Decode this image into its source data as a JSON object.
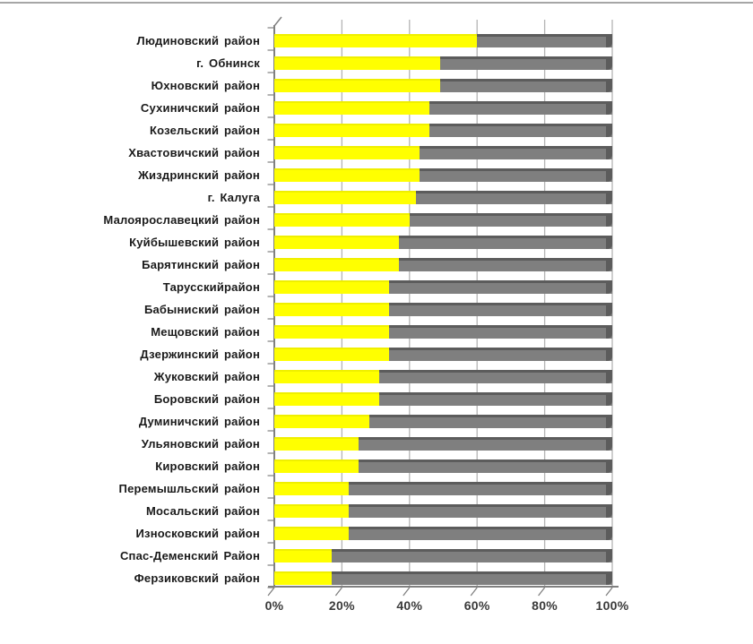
{
  "colors": {
    "series_yellow": "#FFFF00",
    "series_yellow_edge": "#DBDB00",
    "series_gray": "#7F7F7F",
    "series_gray_edge": "#5C5C5C",
    "gridline": "#B4B4B4",
    "axis": "#808080",
    "axis_label_text": "#3A3A3A",
    "category_label_text": "#1A1A1A",
    "frame_border": "#A6A6A6",
    "background": "#FFFFFF"
  },
  "chart_data": {
    "type": "bar",
    "orientation": "horizontal",
    "stacked": true,
    "unit": "%",
    "grid": true,
    "legend_position": "none",
    "xlim": [
      0,
      100
    ],
    "x_tick_labels": [
      "0%",
      "20%",
      "40%",
      "60%",
      "80%",
      "100%"
    ],
    "categories": [
      "Людиновский район",
      "г. Обнинск",
      "Юхновский район",
      "Сухиничский район",
      "Козельский район",
      "Хвастовичский район",
      "Жиздринский район",
      "г. Калуга",
      "Малоярославецкий район",
      "Куйбышевский район",
      "Барятинский район",
      "Тарусскийрайон",
      "Бабыниский район",
      "Мещовский район",
      "Дзержинский район",
      "Жуковский район",
      "Боровский район",
      "Думиничский район",
      "Ульяновский район",
      "Кировский район",
      "Перемышльский район",
      "Мосальский район",
      "Износковский район",
      "Спас-Деменский Район",
      "Ферзиковский район"
    ],
    "series": [
      {
        "name": "share-yellow",
        "color": "#FFFF00",
        "values": [
          60,
          49,
          49,
          46,
          46,
          43,
          43,
          42,
          40,
          37,
          37,
          34,
          34,
          34,
          34,
          31,
          31,
          28,
          25,
          25,
          22,
          22,
          22,
          17,
          17
        ]
      },
      {
        "name": "share-gray",
        "color": "#7F7F7F",
        "values": [
          40,
          51,
          51,
          54,
          54,
          57,
          57,
          58,
          60,
          63,
          63,
          66,
          66,
          66,
          66,
          69,
          69,
          72,
          75,
          75,
          78,
          78,
          78,
          83,
          83
        ]
      }
    ]
  }
}
